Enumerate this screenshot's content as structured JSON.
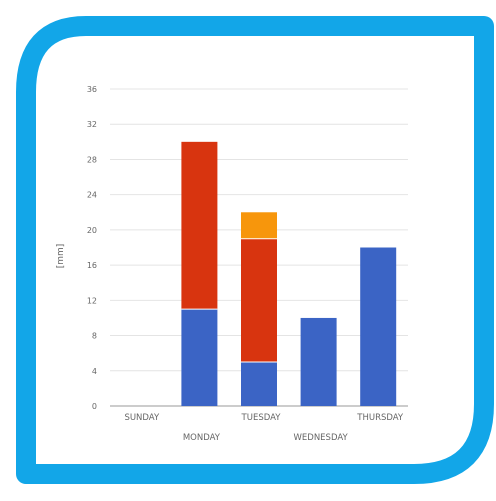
{
  "chart_data": {
    "type": "bar",
    "stacked": true,
    "categories": [
      "SUNDAY",
      "MONDAY",
      "TUESDAY",
      "WEDNESDAY",
      "THURSDAY"
    ],
    "series": [
      {
        "values": [
          0,
          11,
          5,
          10,
          18
        ],
        "color": "#3b64c5"
      },
      {
        "values": [
          0,
          19,
          14,
          0,
          0
        ],
        "color": "#d8340f"
      },
      {
        "values": [
          0,
          0,
          3,
          0,
          0
        ],
        "color": "#f7960c"
      }
    ],
    "ylabel": "[mm]",
    "yticks": [
      0,
      4,
      8,
      12,
      16,
      20,
      24,
      28,
      32,
      36
    ],
    "ylim": [
      0,
      36
    ],
    "grid": true,
    "legend": "none"
  },
  "frame": {
    "color": "#12a6e8"
  }
}
